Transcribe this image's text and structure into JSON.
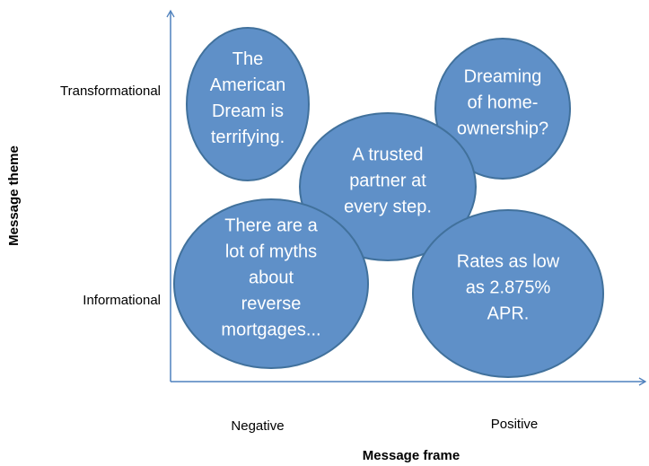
{
  "axes": {
    "y_title": "Message theme",
    "x_title": "Message frame",
    "y_labels": [
      "Transformational",
      "Informational"
    ],
    "x_labels": [
      "Negative",
      "Positive"
    ]
  },
  "bubbles": [
    {
      "lines": [
        "The",
        "American",
        "Dream is",
        "terrifying."
      ]
    },
    {
      "lines": [
        "Dreaming",
        "of home-",
        "ownership?"
      ]
    },
    {
      "lines": [
        "A trusted",
        "partner at",
        "every step."
      ]
    },
    {
      "lines": [
        "There are a",
        "lot of myths",
        "about",
        "reverse",
        "mortgages..."
      ]
    },
    {
      "lines": [
        "Rates as low",
        "as 2.875%",
        "APR."
      ]
    }
  ]
}
